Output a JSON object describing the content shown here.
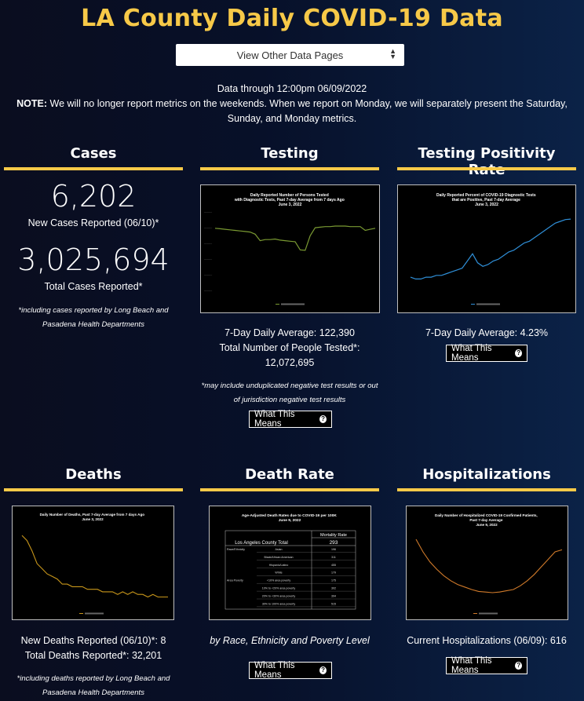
{
  "page": {
    "title": "LA County Daily COVID-19 Data",
    "select_label": "View Other Data Pages",
    "data_through": "Data through 12:00pm 06/09/2022",
    "note_label": "NOTE:",
    "note_text": " We will no longer report metrics on the weekends. When we report on Monday, we will separately present the Saturday, Sunday, and Monday metrics."
  },
  "colors": {
    "accent": "#f7c948",
    "background": "#071029",
    "testing_line": "#7a9a32",
    "positivity_line": "#2f8fd8",
    "deaths_line": "#c8961a",
    "hosp_line": "#d07a2a"
  },
  "cases": {
    "title": "Cases",
    "new_value": "6,202",
    "new_label": "New Cases Reported (06/10)*",
    "total_value": "3,025,694",
    "total_label": "Total Cases Reported*",
    "footnote": "*including cases reported by Long Beach and Pasadena Health Departments"
  },
  "testing": {
    "title": "Testing",
    "chart_title": "Daily Reported Number of Persons Tested\nwith Diagnostic Tests, Past 7-day Average from 7 days Ago\nJune 3, 2022",
    "avg_text": "7-Day Daily Average: 122,390",
    "total_text": "Total Number of People Tested*: 12,072,695",
    "footnote": "*may include unduplicated negative test results or out of jurisdiction negative test results",
    "button": "What This Means"
  },
  "positivity": {
    "title": "Testing Positivity Rate",
    "chart_title": "Daily Reported Percent of COVID-19 Diagnostic Tests\nthat are Positive, Past 7-day Average\nJune 3, 2022",
    "avg_text": "7-Day Daily Average: 4.23%",
    "button": "What This Means"
  },
  "deaths": {
    "title": "Deaths",
    "chart_title": "Daily Number of Deaths, Past 7-day Average from 7 days Ago\nJune 3, 2022",
    "new_text": "New Deaths Reported (06/10)*: 8",
    "total_text": "Total Deaths Reported*: 32,201",
    "footnote": "*including deaths reported by Long Beach and Pasadena Health Departments"
  },
  "death_rate": {
    "title": "Death Rate",
    "chart_title": "Age-Adjusted Death Rates due to COVID-19 per 100K\nJune 9, 2022",
    "table_header": "Mortality Rate",
    "county_label": "Los Angeles County Total",
    "county_value": "293",
    "rows": [
      {
        "group": "Race/Ethnicity",
        "label": "Asian",
        "value": "196"
      },
      {
        "group": "",
        "label": "Black/African American",
        "value": "311"
      },
      {
        "group": "",
        "label": "Hispanic/Latino",
        "value": "455"
      },
      {
        "group": "",
        "label": "White",
        "value": "179"
      },
      {
        "group": "Area Poverty",
        "label": "<10% area poverty",
        "value": "175"
      },
      {
        "group": "",
        "label": "10% to <20% area poverty",
        "value": "302"
      },
      {
        "group": "",
        "label": "20% to <30% area poverty",
        "value": "394"
      },
      {
        "group": "",
        "label": "30% to 100% area poverty",
        "value": "515"
      }
    ],
    "subtitle": "by Race, Ethnicity and Poverty Level",
    "button": "What This Means"
  },
  "hospitalizations": {
    "title": "Hospitalizations",
    "chart_title": "Daily Number of Hospitalized COVID-19 Confirmed Patients,\nPast 7-day Average\nJune 9, 2022",
    "current_text": "Current Hospitalizations (06/09): 616",
    "button": "What This Means"
  },
  "chart_data": [
    {
      "type": "line",
      "title": "Daily Reported Number of Persons Tested with Diagnostic Tests, Past 7-day Average from 7 days Ago June 3, 2022",
      "series": [
        {
          "values": [
            124,
            123,
            122,
            121,
            120,
            119,
            118,
            117,
            113,
            101,
            103,
            103,
            104,
            102,
            101,
            100,
            99,
            84,
            83,
            110,
            125,
            126,
            127,
            127,
            128,
            128,
            128,
            127,
            127,
            127,
            120,
            122,
            124
          ]
        }
      ]
    },
    {
      "type": "line",
      "title": "Daily Reported Percent of COVID-19 Diagnostic Tests that are Positive, Past 7-day Average June 3, 2022",
      "series": [
        {
          "values": [
            1.0,
            0.9,
            0.9,
            1.0,
            1.0,
            1.1,
            1.1,
            1.2,
            1.3,
            1.4,
            1.5,
            1.9,
            2.3,
            1.8,
            1.6,
            1.7,
            1.9,
            2.0,
            2.2,
            2.4,
            2.5,
            2.7,
            2.9,
            3.0,
            3.2,
            3.4,
            3.6,
            3.8,
            4.0,
            4.1,
            4.2,
            4.23
          ]
        }
      ]
    },
    {
      "type": "line",
      "title": "Daily Number of Deaths, Past 7-day Average from 7 days Ago June 3, 2022",
      "series": [
        {
          "values": [
            26,
            24,
            20,
            15,
            13,
            11,
            10,
            9,
            7,
            7,
            6,
            6,
            6,
            5,
            5,
            5,
            4,
            4,
            4,
            3,
            4,
            3,
            4,
            3,
            3,
            2,
            3,
            2,
            2,
            2
          ]
        }
      ]
    },
    {
      "type": "line",
      "title": "Daily Number of Hospitalized COVID-19 Confirmed Patients, Past 7-day Average June 9, 2022",
      "series": [
        {
          "values": [
            700,
            600,
            520,
            460,
            410,
            370,
            340,
            320,
            300,
            285,
            280,
            275,
            280,
            290,
            300,
            330,
            370,
            420,
            480,
            540,
            600,
            616
          ]
        }
      ]
    }
  ]
}
